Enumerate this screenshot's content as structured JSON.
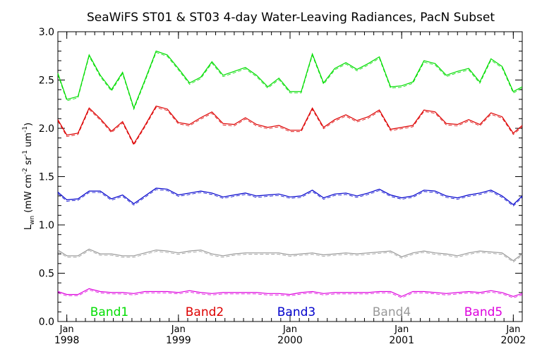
{
  "chart_data": {
    "type": "line",
    "title": "SeaWiFS ST01 & ST03 4-day Water-Leaving Radiances, PacN Subset",
    "ylabel": {
      "main": "L",
      "sub": "wn",
      "units": "(mW cm",
      "exp1": "-2",
      "mid": " sr",
      "exp2": "-1",
      "mid2": " um",
      "exp3": "-1",
      "close": ")"
    },
    "ylim": [
      0.0,
      3.0
    ],
    "xlim": [
      1997.92,
      2002.08
    ],
    "y_ticks": [
      {
        "value": 0.0,
        "label": "0.0"
      },
      {
        "value": 0.5,
        "label": "0.5"
      },
      {
        "value": 1.0,
        "label": "1.0"
      },
      {
        "value": 1.5,
        "label": "1.5"
      },
      {
        "value": 2.0,
        "label": "2.0"
      },
      {
        "value": 2.5,
        "label": "2.5"
      },
      {
        "value": 3.0,
        "label": "3.0"
      }
    ],
    "x_ticks": [
      {
        "value": 1998.0,
        "month": "Jan",
        "year": "1998"
      },
      {
        "value": 1999.0,
        "month": "Jan",
        "year": "1999"
      },
      {
        "value": 2000.0,
        "month": "Jan",
        "year": "2000"
      },
      {
        "value": 2001.0,
        "month": "Jan",
        "year": "2001"
      },
      {
        "value": 2002.0,
        "month": "Jan",
        "year": "2002"
      }
    ],
    "grid": false,
    "legend_position": "bottom-inside",
    "series": [
      {
        "name": "Band1",
        "color": "#00dd00",
        "x": [
          1997.92,
          1998.0,
          1998.1,
          1998.2,
          1998.3,
          1998.4,
          1998.5,
          1998.6,
          1998.7,
          1998.8,
          1998.9,
          1999.0,
          1999.1,
          1999.2,
          1999.3,
          1999.4,
          1999.5,
          1999.6,
          1999.7,
          1999.8,
          1999.9,
          2000.0,
          2000.1,
          2000.2,
          2000.3,
          2000.4,
          2000.5,
          2000.6,
          2000.7,
          2000.8,
          2000.9,
          2001.0,
          2001.1,
          2001.2,
          2001.3,
          2001.4,
          2001.5,
          2001.6,
          2001.7,
          2001.8,
          2001.9,
          2002.0,
          2002.08
        ],
        "values": [
          2.57,
          2.3,
          2.33,
          2.76,
          2.55,
          2.4,
          2.58,
          2.21,
          2.5,
          2.8,
          2.76,
          2.62,
          2.47,
          2.53,
          2.69,
          2.55,
          2.59,
          2.63,
          2.55,
          2.43,
          2.52,
          2.38,
          2.38,
          2.77,
          2.47,
          2.62,
          2.68,
          2.61,
          2.67,
          2.74,
          2.43,
          2.44,
          2.48,
          2.7,
          2.67,
          2.55,
          2.59,
          2.62,
          2.48,
          2.72,
          2.64,
          2.38,
          2.43
        ]
      },
      {
        "name": "Band2",
        "color": "#dd0000",
        "x": [
          1997.92,
          1998.0,
          1998.1,
          1998.2,
          1998.3,
          1998.4,
          1998.5,
          1998.6,
          1998.7,
          1998.8,
          1998.9,
          1999.0,
          1999.1,
          1999.2,
          1999.3,
          1999.4,
          1999.5,
          1999.6,
          1999.7,
          1999.8,
          1999.9,
          2000.0,
          2000.1,
          2000.2,
          2000.3,
          2000.4,
          2000.5,
          2000.6,
          2000.7,
          2000.8,
          2000.9,
          2001.0,
          2001.1,
          2001.2,
          2001.3,
          2001.4,
          2001.5,
          2001.6,
          2001.7,
          2001.8,
          2001.9,
          2002.0,
          2002.08
        ],
        "values": [
          2.09,
          1.93,
          1.95,
          2.21,
          2.1,
          1.97,
          2.07,
          1.84,
          2.03,
          2.23,
          2.2,
          2.06,
          2.04,
          2.11,
          2.17,
          2.05,
          2.04,
          2.11,
          2.04,
          2.01,
          2.03,
          1.98,
          1.98,
          2.21,
          2.01,
          2.09,
          2.14,
          2.08,
          2.12,
          2.19,
          1.99,
          2.01,
          2.03,
          2.19,
          2.17,
          2.05,
          2.04,
          2.09,
          2.04,
          2.16,
          2.12,
          1.95,
          2.03
        ]
      },
      {
        "name": "Band3",
        "color": "#0000cc",
        "x": [
          1997.92,
          1998.0,
          1998.1,
          1998.2,
          1998.3,
          1998.4,
          1998.5,
          1998.6,
          1998.7,
          1998.8,
          1998.9,
          1999.0,
          1999.1,
          1999.2,
          1999.3,
          1999.4,
          1999.5,
          1999.6,
          1999.7,
          1999.8,
          1999.9,
          2000.0,
          2000.1,
          2000.2,
          2000.3,
          2000.4,
          2000.5,
          2000.6,
          2000.7,
          2000.8,
          2000.9,
          2001.0,
          2001.1,
          2001.2,
          2001.3,
          2001.4,
          2001.5,
          2001.6,
          2001.7,
          2001.8,
          2001.9,
          2002.0,
          2002.08
        ],
        "values": [
          1.34,
          1.26,
          1.27,
          1.35,
          1.35,
          1.27,
          1.31,
          1.22,
          1.3,
          1.38,
          1.37,
          1.31,
          1.33,
          1.35,
          1.33,
          1.29,
          1.31,
          1.33,
          1.3,
          1.31,
          1.32,
          1.29,
          1.3,
          1.36,
          1.28,
          1.32,
          1.33,
          1.3,
          1.33,
          1.37,
          1.31,
          1.28,
          1.3,
          1.36,
          1.35,
          1.3,
          1.28,
          1.31,
          1.33,
          1.36,
          1.3,
          1.21,
          1.3
        ]
      },
      {
        "name": "Band4",
        "color": "#999999",
        "x": [
          1997.92,
          1998.0,
          1998.1,
          1998.2,
          1998.3,
          1998.4,
          1998.5,
          1998.6,
          1998.7,
          1998.8,
          1998.9,
          1999.0,
          1999.1,
          1999.2,
          1999.3,
          1999.4,
          1999.5,
          1999.6,
          1999.7,
          1999.8,
          1999.9,
          2000.0,
          2000.1,
          2000.2,
          2000.3,
          2000.4,
          2000.5,
          2000.6,
          2000.7,
          2000.8,
          2000.9,
          2001.0,
          2001.1,
          2001.2,
          2001.3,
          2001.4,
          2001.5,
          2001.6,
          2001.7,
          2001.8,
          2001.9,
          2002.0,
          2002.08
        ],
        "values": [
          0.74,
          0.68,
          0.68,
          0.75,
          0.7,
          0.7,
          0.68,
          0.68,
          0.71,
          0.74,
          0.73,
          0.71,
          0.73,
          0.74,
          0.7,
          0.68,
          0.7,
          0.71,
          0.71,
          0.71,
          0.71,
          0.69,
          0.7,
          0.71,
          0.69,
          0.7,
          0.71,
          0.7,
          0.71,
          0.72,
          0.73,
          0.67,
          0.71,
          0.73,
          0.71,
          0.7,
          0.68,
          0.71,
          0.73,
          0.72,
          0.71,
          0.63,
          0.7
        ]
      },
      {
        "name": "Band5",
        "color": "#dd00dd",
        "x": [
          1997.92,
          1998.0,
          1998.1,
          1998.2,
          1998.3,
          1998.4,
          1998.5,
          1998.6,
          1998.7,
          1998.8,
          1998.9,
          1999.0,
          1999.1,
          1999.2,
          1999.3,
          1999.4,
          1999.5,
          1999.6,
          1999.7,
          1999.8,
          1999.9,
          2000.0,
          2000.1,
          2000.2,
          2000.3,
          2000.4,
          2000.5,
          2000.6,
          2000.7,
          2000.8,
          2000.9,
          2001.0,
          2001.1,
          2001.2,
          2001.3,
          2001.4,
          2001.5,
          2001.6,
          2001.7,
          2001.8,
          2001.9,
          2002.0,
          2002.08
        ],
        "values": [
          0.31,
          0.28,
          0.28,
          0.34,
          0.31,
          0.3,
          0.3,
          0.29,
          0.31,
          0.31,
          0.31,
          0.3,
          0.32,
          0.3,
          0.29,
          0.3,
          0.3,
          0.3,
          0.3,
          0.29,
          0.29,
          0.28,
          0.3,
          0.31,
          0.29,
          0.3,
          0.3,
          0.3,
          0.3,
          0.31,
          0.31,
          0.26,
          0.31,
          0.31,
          0.3,
          0.29,
          0.3,
          0.31,
          0.3,
          0.32,
          0.3,
          0.26,
          0.29
        ]
      }
    ]
  }
}
